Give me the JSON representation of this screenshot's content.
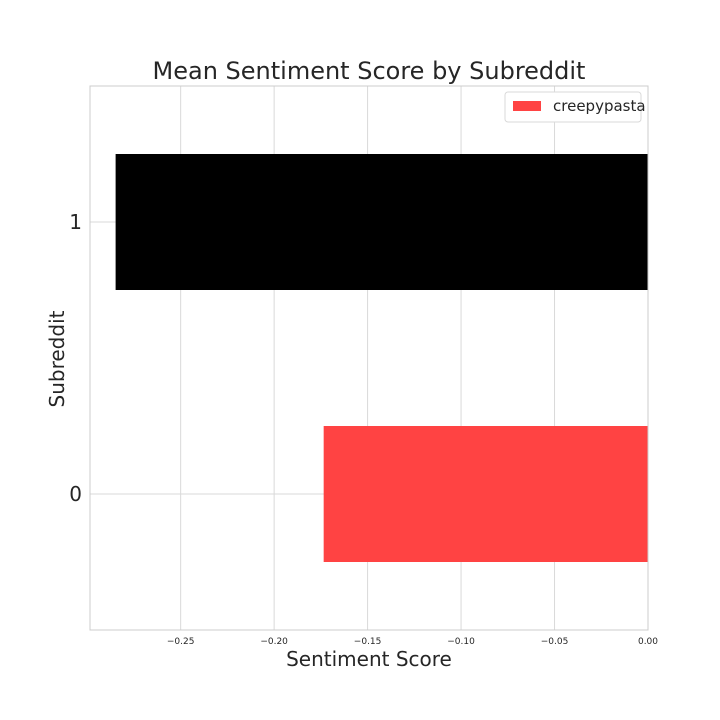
{
  "chart_data": {
    "type": "bar",
    "orientation": "horizontal",
    "title": "Mean Sentiment Score by Subreddit",
    "xlabel": "Sentiment Score",
    "ylabel": "Subreddit",
    "xlim": [
      -0.2985,
      0.0
    ],
    "categories": [
      "0",
      "1"
    ],
    "values": [
      -0.1735,
      -0.2848
    ],
    "bar_colors": [
      "#ff4343",
      "#000000"
    ],
    "xticks": [
      -0.25,
      -0.2,
      -0.15,
      -0.1,
      -0.05,
      0.0
    ],
    "xtick_labels": [
      "−0.25",
      "−0.20",
      "−0.15",
      "−0.10",
      "−0.05",
      "0.00"
    ],
    "grid": true,
    "legend": {
      "placement": "top-right",
      "entries": [
        {
          "label": "creepypasta",
          "color": "#ff4343"
        }
      ]
    }
  }
}
